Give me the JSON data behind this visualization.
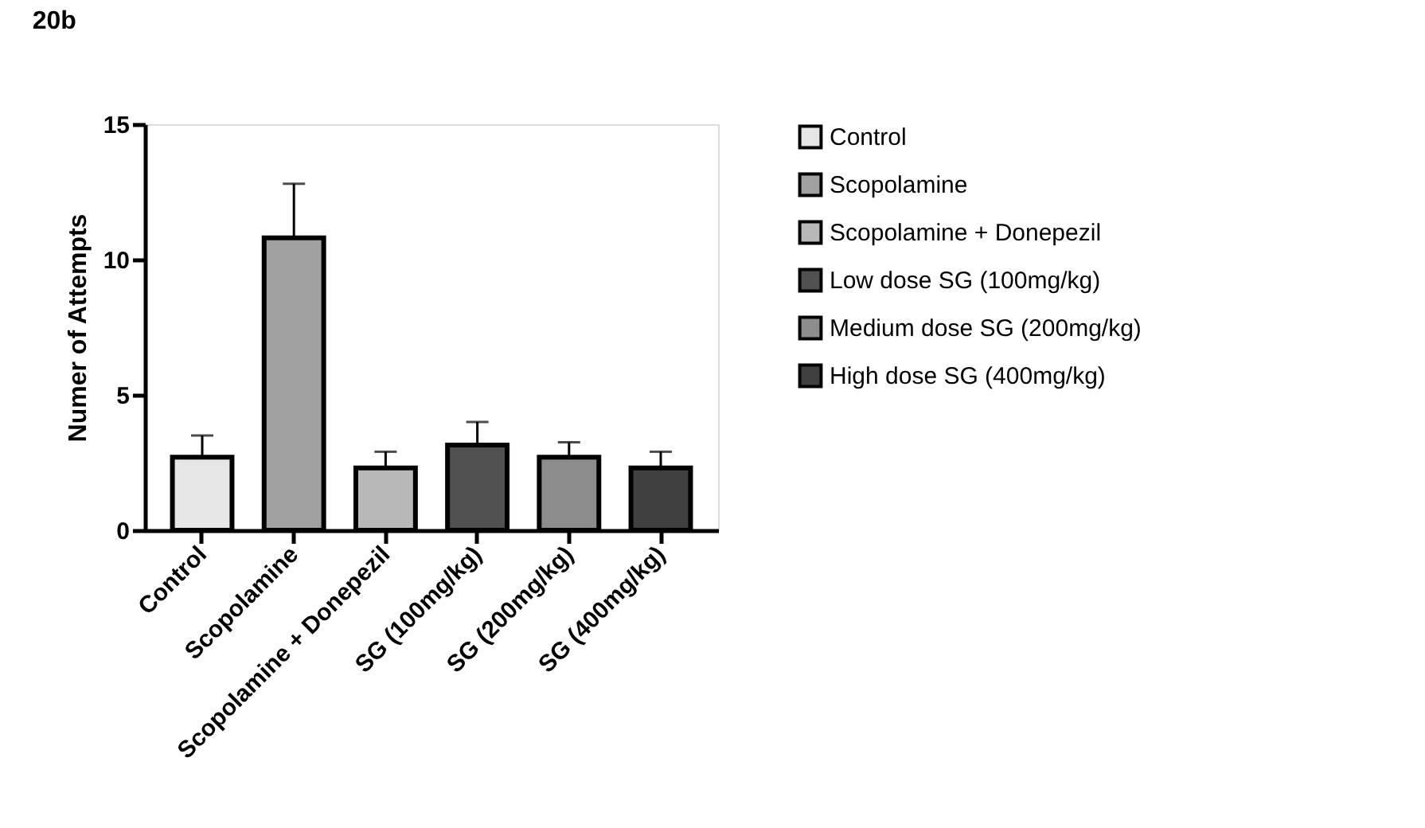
{
  "chart_data": {
    "type": "bar",
    "title": "20b",
    "ylabel": "Numer of Attempts",
    "categories": [
      "Control",
      "Scopolamine",
      "Scopolamine + Donepezil",
      "SG (100mg/kg)",
      "SG (200mg/kg)",
      "SG (400mg/kg)"
    ],
    "series": [
      {
        "name": "Control",
        "color": "#e6e6e6",
        "values": [
          2.7,
          null,
          null,
          null,
          null,
          null
        ],
        "errors": [
          [
            2.7,
            3.5
          ],
          null,
          null,
          null,
          null,
          null
        ]
      },
      {
        "name": "Scopolamine",
        "color": "#a0a0a0",
        "values": [
          null,
          10.8,
          null,
          null,
          null,
          null
        ],
        "errors": [
          null,
          [
            10.8,
            12.8
          ],
          null,
          null,
          null,
          null
        ]
      },
      {
        "name": "Scopolamine + Donepezil",
        "color": "#b8b8b8",
        "values": [
          null,
          null,
          2.3,
          null,
          null,
          null
        ],
        "errors": [
          null,
          null,
          [
            2.3,
            2.9
          ],
          null,
          null,
          null
        ]
      },
      {
        "name": "Low dose SG (100mg/kg)",
        "color": "#505050",
        "values": [
          null,
          null,
          null,
          3.15,
          null,
          null
        ],
        "errors": [
          null,
          null,
          null,
          [
            3.15,
            4.0
          ],
          null,
          null
        ]
      },
      {
        "name": "Medium dose SG (200mg/kg)",
        "color": "#8c8c8c",
        "values": [
          null,
          null,
          null,
          null,
          2.7,
          null
        ],
        "errors": [
          null,
          null,
          null,
          null,
          [
            2.7,
            3.25
          ],
          null
        ]
      },
      {
        "name": "High dose SG (400mg/kg)",
        "color": "#404040",
        "values": [
          null,
          null,
          null,
          null,
          null,
          2.3
        ],
        "errors": [
          null,
          null,
          null,
          null,
          null,
          [
            2.3,
            2.9
          ]
        ]
      }
    ],
    "ylim": [
      0,
      15
    ],
    "yticks": [
      0,
      5,
      10,
      15
    ],
    "grid": false,
    "legend": "top right"
  }
}
